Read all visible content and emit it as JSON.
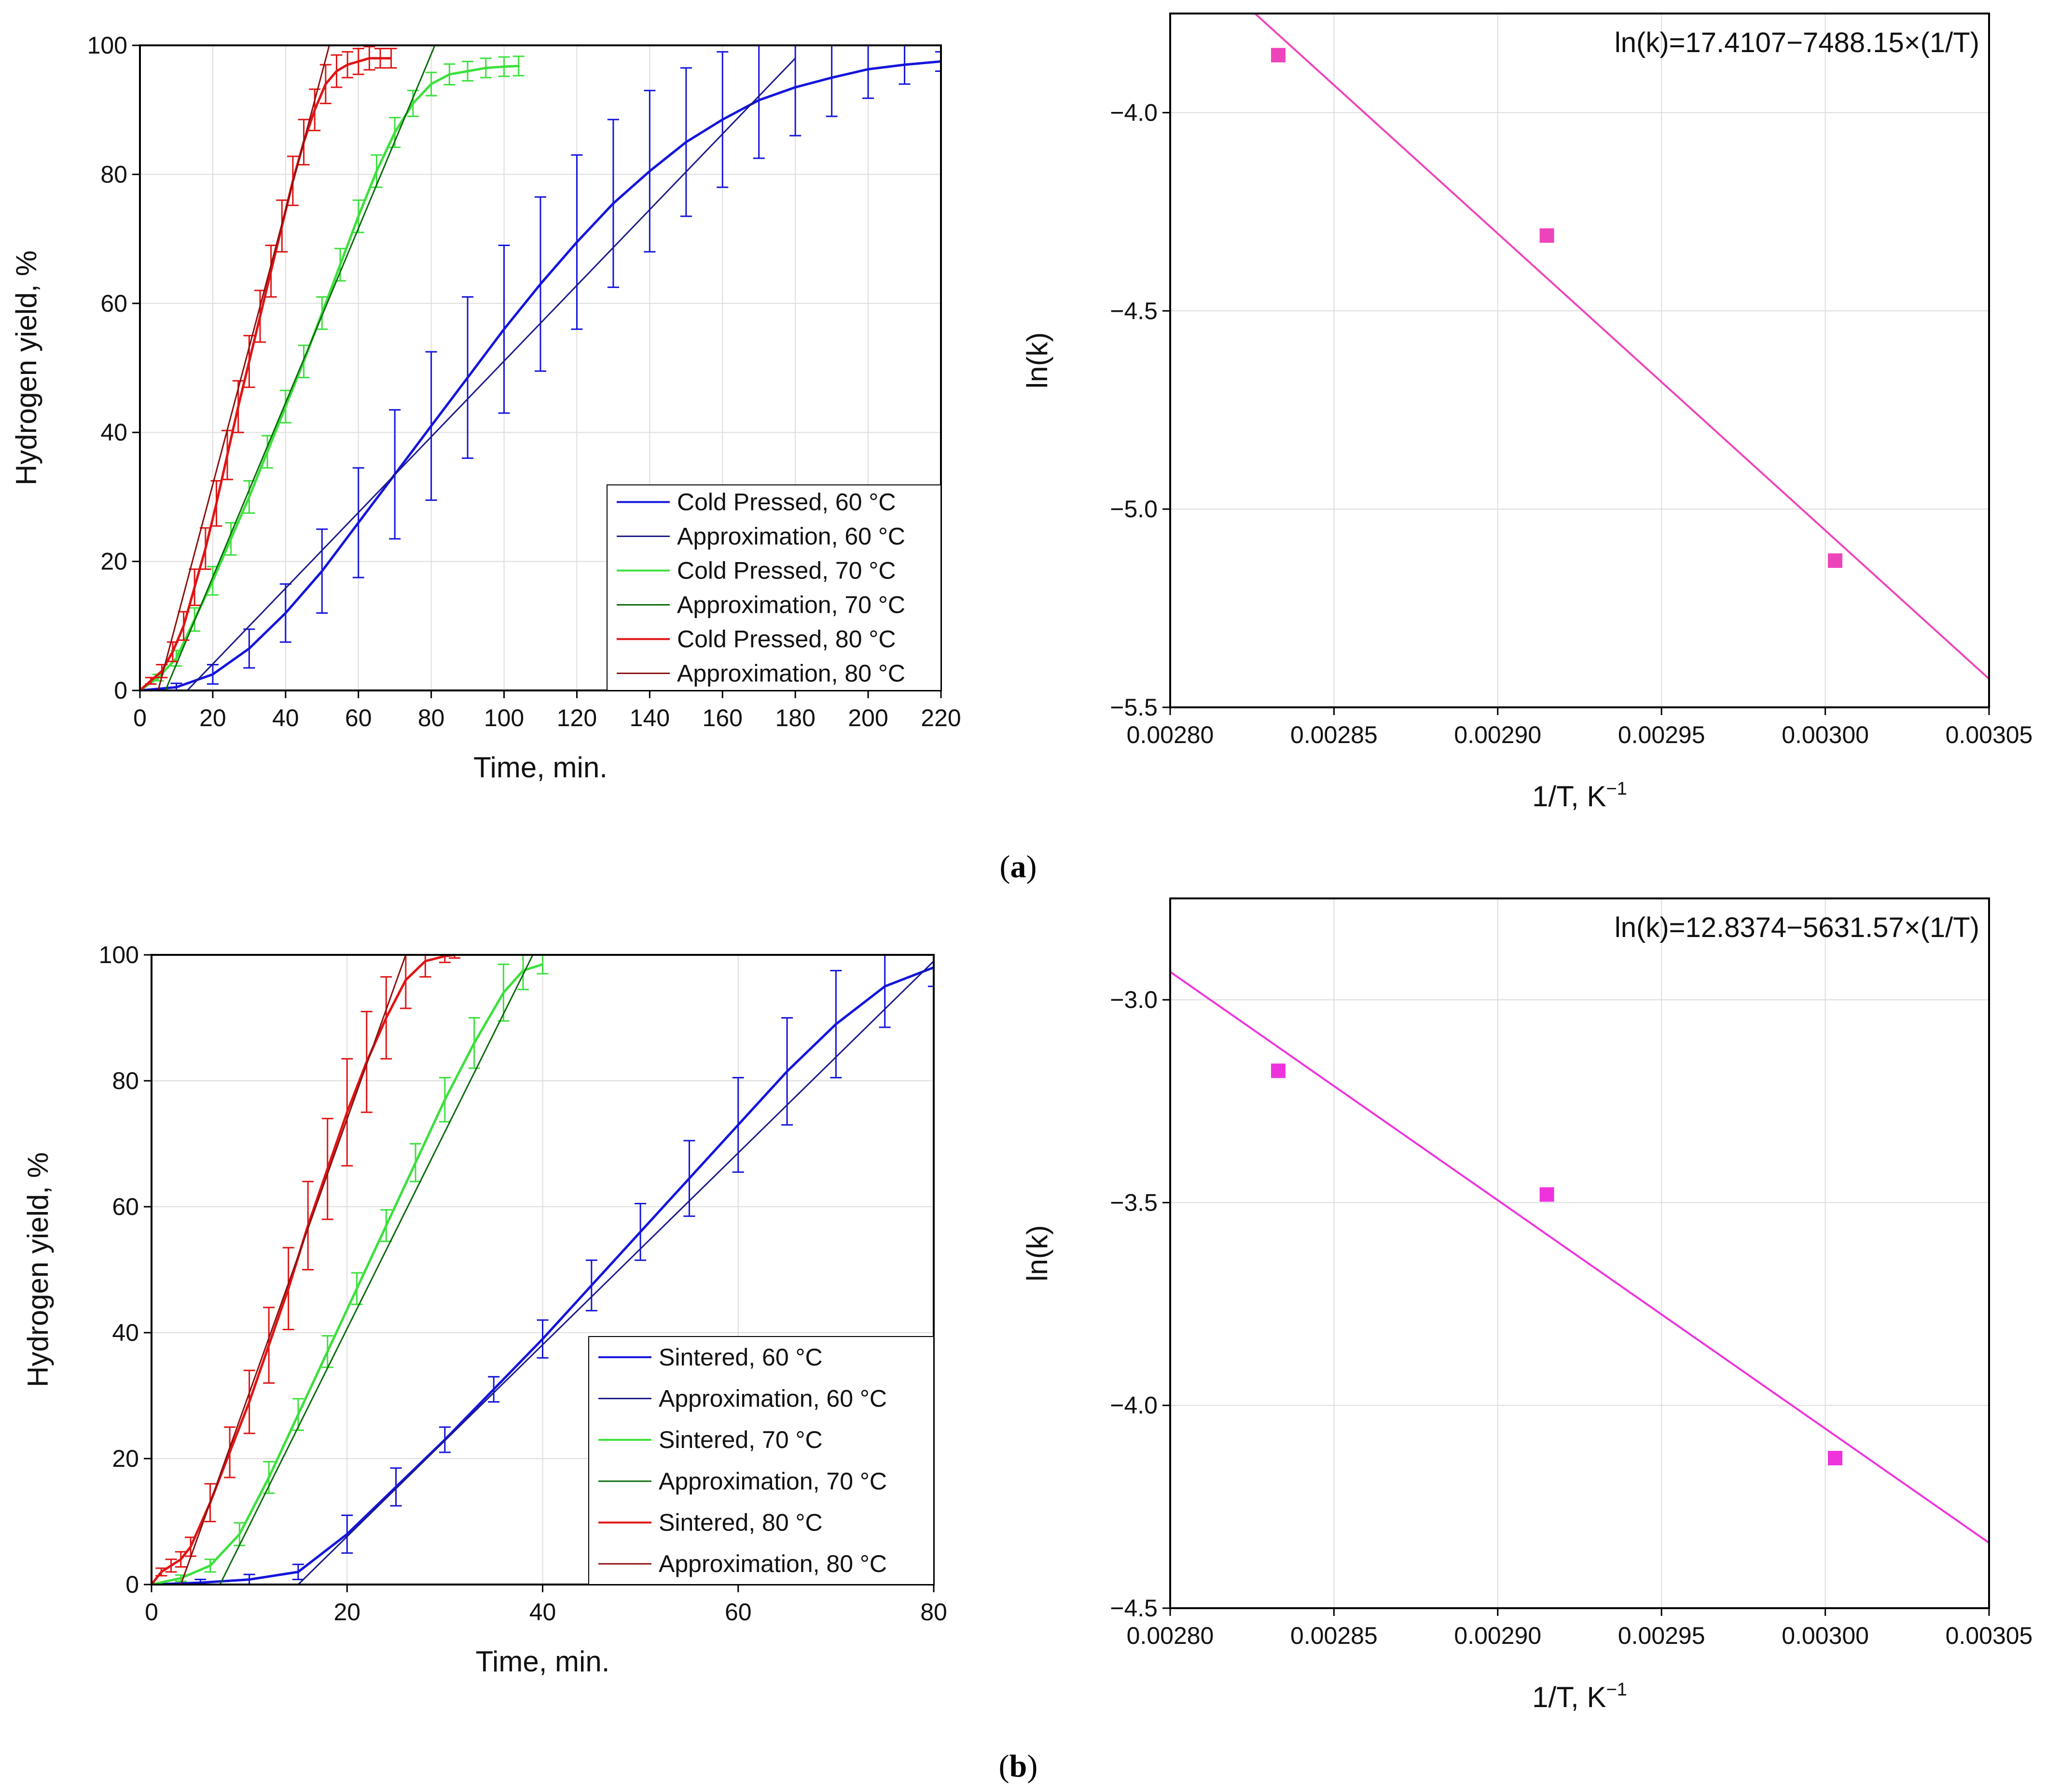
{
  "figure": {
    "captions": [
      {
        "letter": "a",
        "open": "(",
        "close": ")"
      },
      {
        "letter": "b",
        "open": "(",
        "close": ")"
      }
    ]
  },
  "chart_data": [
    {
      "id": "a-kinetics",
      "type": "line",
      "title": "",
      "xlabel": "Time, min.",
      "ylabel": "Hydrogen yield, %",
      "xlim": [
        0,
        220
      ],
      "ylim": [
        0,
        100
      ],
      "xticks": [
        0,
        20,
        40,
        60,
        80,
        100,
        120,
        140,
        160,
        180,
        200,
        220
      ],
      "yticks": [
        0,
        20,
        40,
        60,
        80,
        100
      ],
      "grid": true,
      "legend_position": "bottom-right",
      "series": [
        {
          "name": "Cold Pressed, 60 °C",
          "color": "#1414dc",
          "kind": "measured",
          "x": [
            0,
            10,
            20,
            30,
            40,
            50,
            60,
            70,
            80,
            90,
            100,
            110,
            120,
            130,
            140,
            150,
            160,
            170,
            180,
            190,
            200,
            210,
            220
          ],
          "y": [
            0,
            0.5,
            2.5,
            6.5,
            12,
            18.5,
            26,
            33.5,
            41,
            48.5,
            56,
            63,
            69.5,
            75.5,
            80.5,
            85,
            88.5,
            91.5,
            93.5,
            95,
            96.3,
            97,
            97.5
          ],
          "err": [
            0,
            0.6,
            1.5,
            3,
            4.5,
            6.5,
            8.5,
            10,
            11.5,
            12.5,
            13,
            13.5,
            13.5,
            13,
            12.5,
            11.5,
            10.5,
            9,
            7.5,
            6,
            4.5,
            3,
            1.5
          ]
        },
        {
          "name": "Approximation, 60 °C",
          "color": "#1a1a8a",
          "kind": "fit",
          "x": [
            13,
            180
          ],
          "y": [
            0,
            98
          ]
        },
        {
          "name": "Cold Pressed, 70 °C",
          "color": "#3ce03c",
          "kind": "measured",
          "x": [
            0,
            5,
            10,
            15,
            20,
            25,
            30,
            35,
            40,
            45,
            50,
            55,
            60,
            65,
            70,
            75,
            80,
            85,
            90,
            95,
            100,
            104
          ],
          "y": [
            0,
            2,
            5,
            11,
            17,
            23.5,
            30,
            37,
            44,
            51,
            58.5,
            66,
            73.5,
            80.5,
            86.5,
            91,
            94,
            95.5,
            96,
            96.5,
            96.7,
            96.8
          ],
          "err": [
            0,
            0.5,
            1.2,
            1.8,
            2.2,
            2.5,
            2.5,
            2.5,
            2.5,
            2.5,
            2.5,
            2.5,
            2.5,
            2.5,
            2.3,
            2,
            1.8,
            1.6,
            1.5,
            1.5,
            1.5,
            1.5
          ]
        },
        {
          "name": "Approximation, 70 °C",
          "color": "#0a6a0a",
          "kind": "fit",
          "x": [
            7,
            81
          ],
          "y": [
            0,
            100
          ]
        },
        {
          "name": "Cold Pressed, 80 °C",
          "color": "#e01414",
          "kind": "measured",
          "x": [
            0,
            3,
            6,
            9,
            12,
            15,
            18,
            21,
            24,
            27,
            30,
            33,
            36,
            39,
            42,
            45,
            48,
            51,
            54,
            57,
            60,
            63,
            66,
            69
          ],
          "y": [
            0,
            1.5,
            3,
            6,
            10,
            16,
            22,
            29,
            36.5,
            44,
            51,
            58,
            65,
            72,
            79,
            85,
            90,
            94,
            96,
            97,
            97.5,
            98,
            98,
            98
          ],
          "err": [
            0,
            0.5,
            1,
            1.5,
            2.2,
            2.8,
            3.2,
            3.5,
            3.8,
            4,
            4,
            4,
            4,
            4,
            3.8,
            3.5,
            3.2,
            3,
            2.5,
            2,
            2,
            1.8,
            1.5,
            1.5
          ]
        },
        {
          "name": "Approximation, 80 °C",
          "color": "#8a1010",
          "kind": "fit",
          "x": [
            5,
            52
          ],
          "y": [
            0,
            100
          ]
        }
      ]
    },
    {
      "id": "a-arrhenius",
      "type": "scatter",
      "title": "",
      "xlabel": "1/T, K",
      "xlabel_superscript": "−1",
      "ylabel": "ln(k)",
      "xlim": [
        0.0028,
        0.00305
      ],
      "ylim": [
        -5.5,
        -3.75
      ],
      "xticks": [
        0.0028,
        0.00285,
        0.0029,
        0.00295,
        0.003,
        0.00305
      ],
      "xtick_labels": [
        "0.00280",
        "0.00285",
        "0.00290",
        "0.00295",
        "0.00300",
        "0.00305"
      ],
      "yticks": [
        -5.5,
        -5.0,
        -4.5,
        -4.0
      ],
      "ytick_labels": [
        "−5.5",
        "−5.0",
        "−4.5",
        "−4.0"
      ],
      "grid": true,
      "equation": "ln(k)=17.4107−7488.15×(1/T)",
      "point_color": "#ee44bb",
      "line_color": "#ee44bb",
      "x": [
        0.002833,
        0.002915,
        0.003003
      ],
      "y": [
        -3.855,
        -4.31,
        -5.13
      ],
      "fit": {
        "intercept": 17.4107,
        "slope": -7488.15
      }
    },
    {
      "id": "b-kinetics",
      "type": "line",
      "title": "",
      "xlabel": "Time, min.",
      "ylabel": "Hydrogen yield, %",
      "xlim": [
        0,
        80
      ],
      "ylim": [
        0,
        100
      ],
      "xticks": [
        0,
        20,
        40,
        60,
        80
      ],
      "yticks": [
        0,
        20,
        40,
        60,
        80,
        100
      ],
      "grid": true,
      "legend_position": "bottom-right",
      "series": [
        {
          "name": "Sintered, 60 °C",
          "color": "#1414dc",
          "kind": "measured",
          "x": [
            0,
            5,
            10,
            15,
            20,
            25,
            30,
            35,
            40,
            45,
            50,
            55,
            60,
            65,
            70,
            75,
            80
          ],
          "y": [
            0,
            0.3,
            0.8,
            2,
            8,
            15.5,
            23,
            31,
            39,
            47.5,
            56,
            64.5,
            73,
            81.5,
            89,
            95,
            98
          ],
          "err": [
            0,
            0.5,
            0.8,
            1.2,
            3,
            3,
            2,
            2,
            3,
            4,
            4.5,
            6,
            7.5,
            8.5,
            8.5,
            6.5,
            3
          ]
        },
        {
          "name": "Approximation, 60 °C",
          "color": "#1a1a8a",
          "kind": "fit",
          "x": [
            15,
            80
          ],
          "y": [
            0,
            99
          ]
        },
        {
          "name": "Sintered, 70 °C",
          "color": "#3ce03c",
          "kind": "measured",
          "x": [
            0,
            3,
            6,
            9,
            12,
            15,
            18,
            21,
            24,
            27,
            30,
            33,
            36,
            38,
            40
          ],
          "y": [
            0,
            1,
            3,
            8,
            17,
            27,
            37,
            47,
            57,
            67,
            77,
            86,
            94,
            97.5,
            98.5
          ],
          "err": [
            0,
            0.5,
            1,
            1.8,
            2.5,
            2.5,
            2.5,
            2.5,
            2.5,
            3,
            3.5,
            4,
            4.5,
            3,
            1.5
          ]
        },
        {
          "name": "Approximation, 70 °C",
          "color": "#0a6a0a",
          "kind": "fit",
          "x": [
            7,
            39
          ],
          "y": [
            0,
            100
          ]
        },
        {
          "name": "Sintered, 80 °C",
          "color": "#e01414",
          "kind": "measured",
          "x": [
            0,
            1,
            2,
            3,
            4,
            6,
            8,
            10,
            12,
            14,
            16,
            18,
            20,
            22,
            24,
            26,
            28,
            30,
            31
          ],
          "y": [
            0,
            2,
            3,
            4,
            6,
            13,
            21,
            29,
            38,
            47,
            57,
            66,
            75,
            83,
            90,
            96,
            99,
            99.8,
            100
          ],
          "err": [
            0,
            0.6,
            1,
            1.2,
            1.5,
            3,
            4,
            5,
            6,
            6.5,
            7,
            8,
            8.5,
            8,
            6.5,
            4.5,
            2.5,
            1,
            0.5
          ]
        },
        {
          "name": "Approximation, 80 °C",
          "color": "#8a1010",
          "kind": "fit",
          "x": [
            3,
            26
          ],
          "y": [
            0,
            100
          ]
        }
      ]
    },
    {
      "id": "b-arrhenius",
      "type": "scatter",
      "title": "",
      "xlabel": "1/T, K",
      "xlabel_superscript": "−1",
      "ylabel": "ln(k)",
      "xlim": [
        0.0028,
        0.00305
      ],
      "ylim": [
        -4.5,
        -2.75
      ],
      "xticks": [
        0.0028,
        0.00285,
        0.0029,
        0.00295,
        0.003,
        0.00305
      ],
      "xtick_labels": [
        "0.00280",
        "0.00285",
        "0.00290",
        "0.00295",
        "0.00300",
        "0.00305"
      ],
      "yticks": [
        -4.5,
        -4.0,
        -3.5,
        -3.0
      ],
      "ytick_labels": [
        "−4.5",
        "−4.0",
        "−3.5",
        "−3.0"
      ],
      "grid": true,
      "equation": "ln(k)=12.8374−5631.57×(1/T)",
      "point_color": "#ee33dd",
      "line_color": "#ee33dd",
      "x": [
        0.002833,
        0.002915,
        0.003003
      ],
      "y": [
        -3.175,
        -3.48,
        -4.13
      ],
      "fit": {
        "intercept": 12.8374,
        "slope": -5631.57
      }
    }
  ]
}
